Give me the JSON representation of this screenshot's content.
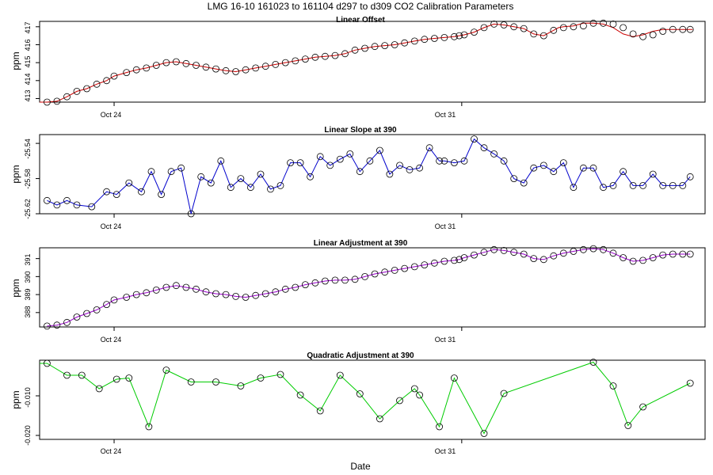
{
  "title": "LMG   16-10    161023 to 161104    d297 to d309   CO2 Calibration Parameters",
  "xlabel": "Date",
  "x_ticks": [
    {
      "day": 24,
      "label": "Oct 24"
    },
    {
      "day": 31,
      "label": "Oct 31"
    }
  ],
  "xlim": [
    22.5,
    35.9
  ],
  "colors": {
    "offset": "#cc0000",
    "slope": "#0000cc",
    "adjustment": "#9900cc",
    "quadratic": "#00cc00",
    "points": "#000000"
  },
  "chart_data": [
    {
      "type": "line",
      "title": "Linear Offset",
      "ylabel": "ppm",
      "ylim": [
        412.8,
        417.3
      ],
      "yticks": [
        "413",
        "414",
        "415",
        "416",
        "417"
      ],
      "line_x": [
        22.5,
        22.65,
        22.85,
        23.05,
        23.25,
        23.45,
        23.65,
        23.85,
        24.0,
        24.25,
        24.45,
        24.65,
        24.85,
        25.05,
        25.25,
        25.45,
        25.65,
        25.85,
        26.05,
        26.25,
        26.45,
        26.65,
        26.85,
        27.05,
        27.25,
        27.45,
        27.65,
        27.85,
        28.05,
        28.25,
        28.45,
        28.65,
        28.85,
        29.05,
        29.25,
        29.45,
        29.65,
        29.85,
        30.05,
        30.25,
        30.45,
        30.65,
        30.85,
        30.95,
        31.05,
        31.25,
        31.45,
        31.65,
        31.85,
        32.05,
        32.25,
        32.45,
        32.65,
        32.85,
        32.95,
        33.05,
        33.25,
        33.45,
        33.65,
        33.85,
        34.05,
        34.25,
        34.45,
        34.65,
        34.85,
        35.05,
        35.25,
        35.45,
        35.65
      ],
      "line_y": [
        412.8,
        412.8,
        412.85,
        413.1,
        413.4,
        413.55,
        413.8,
        414.0,
        414.25,
        414.45,
        414.6,
        414.7,
        414.85,
        415.0,
        415.05,
        414.95,
        414.85,
        414.75,
        414.65,
        414.55,
        414.5,
        414.6,
        414.7,
        414.8,
        414.9,
        415.0,
        415.1,
        415.2,
        415.3,
        415.35,
        415.4,
        415.5,
        415.7,
        415.8,
        415.9,
        415.95,
        416.0,
        416.1,
        416.2,
        416.3,
        416.35,
        416.4,
        416.45,
        416.5,
        416.55,
        416.7,
        416.95,
        417.15,
        417.1,
        417.0,
        416.9,
        416.6,
        416.5,
        416.8,
        416.95,
        417.0,
        417.05,
        417.2,
        417.2,
        417.15,
        416.95,
        416.6,
        416.45,
        416.55,
        416.75,
        416.85,
        416.85,
        416.85,
        416.85
      ],
      "points_x": [
        22.65,
        22.85,
        23.05,
        23.25,
        23.45,
        23.65,
        23.85,
        24.0,
        24.25,
        24.45,
        24.65,
        24.85,
        25.05,
        25.25,
        25.45,
        25.65,
        25.85,
        26.05,
        26.25,
        26.45,
        26.65,
        26.85,
        27.05,
        27.25,
        27.45,
        27.65,
        27.85,
        28.05,
        28.25,
        28.45,
        28.65,
        28.85,
        29.05,
        29.25,
        29.45,
        29.65,
        29.85,
        30.05,
        30.25,
        30.45,
        30.65,
        30.85,
        30.95,
        31.05,
        31.25,
        31.45,
        31.65,
        31.85,
        32.05,
        32.25,
        32.45,
        32.65,
        32.85,
        33.05,
        33.25,
        33.45,
        33.65,
        33.85,
        34.05,
        34.25,
        34.45,
        34.65,
        34.85,
        35.05,
        35.25,
        35.45,
        35.6
      ],
      "points_y": [
        412.8,
        412.85,
        413.1,
        413.4,
        413.55,
        413.8,
        414.0,
        414.25,
        414.45,
        414.6,
        414.7,
        414.85,
        415.0,
        415.05,
        414.95,
        414.85,
        414.75,
        414.65,
        414.55,
        414.5,
        414.6,
        414.7,
        414.8,
        414.9,
        415.0,
        415.1,
        415.2,
        415.3,
        415.35,
        415.4,
        415.5,
        415.7,
        415.8,
        415.9,
        415.95,
        416.0,
        416.1,
        416.2,
        416.3,
        416.35,
        416.4,
        416.45,
        416.5,
        416.55,
        416.7,
        416.95,
        417.15,
        417.1,
        417.0,
        416.9,
        416.6,
        416.5,
        416.8,
        416.95,
        417.0,
        417.05,
        417.2,
        417.2,
        417.15,
        416.95,
        416.6,
        416.45,
        416.55,
        416.75,
        416.85,
        416.85,
        416.85
      ]
    },
    {
      "type": "line",
      "title": "Linear Slope at 390",
      "ylabel": "ppm",
      "ylim": [
        -25.62,
        -25.53
      ],
      "yticks": [
        "-25.62",
        "-25.58",
        "-25.54"
      ],
      "points_x": [
        22.65,
        22.85,
        23.05,
        23.25,
        23.55,
        23.85,
        24.05,
        24.3,
        24.55,
        24.75,
        24.95,
        25.15,
        25.35,
        25.55,
        25.75,
        25.95,
        26.15,
        26.35,
        26.55,
        26.75,
        26.95,
        27.15,
        27.35,
        27.55,
        27.75,
        27.95,
        28.15,
        28.35,
        28.55,
        28.75,
        28.95,
        29.15,
        29.35,
        29.55,
        29.75,
        29.95,
        30.15,
        30.35,
        30.55,
        30.65,
        30.85,
        31.05,
        31.25,
        31.45,
        31.65,
        31.85,
        32.05,
        32.25,
        32.45,
        32.65,
        32.85,
        33.05,
        33.25,
        33.45,
        33.65,
        33.85,
        34.05,
        34.25,
        34.45,
        34.65,
        34.85,
        35.05,
        35.25,
        35.45,
        35.6
      ],
      "points_y": [
        -25.605,
        -25.61,
        -25.605,
        -25.61,
        -25.612,
        -25.595,
        -25.598,
        -25.585,
        -25.595,
        -25.572,
        -25.598,
        -25.572,
        -25.568,
        -25.62,
        -25.578,
        -25.585,
        -25.56,
        -25.59,
        -25.58,
        -25.59,
        -25.575,
        -25.592,
        -25.588,
        -25.562,
        -25.562,
        -25.578,
        -25.555,
        -25.565,
        -25.558,
        -25.552,
        -25.572,
        -25.56,
        -25.548,
        -25.575,
        -25.565,
        -25.57,
        -25.568,
        -25.545,
        -25.56,
        -25.56,
        -25.562,
        -25.56,
        -25.535,
        -25.545,
        -25.552,
        -25.56,
        -25.58,
        -25.585,
        -25.568,
        -25.565,
        -25.572,
        -25.562,
        -25.59,
        -25.568,
        -25.568,
        -25.59,
        -25.588,
        -25.572,
        -25.588,
        -25.588,
        -25.575,
        -25.588,
        -25.588,
        -25.588,
        -25.578
      ]
    },
    {
      "type": "line",
      "title": "Linear Adjustment at 390",
      "ylabel": "ppm",
      "ylim": [
        387.2,
        391.6
      ],
      "yticks": [
        "388",
        "389",
        "390",
        "391"
      ],
      "points_x": [
        22.65,
        22.85,
        23.05,
        23.25,
        23.45,
        23.65,
        23.85,
        24.0,
        24.25,
        24.45,
        24.65,
        24.85,
        25.05,
        25.25,
        25.45,
        25.65,
        25.85,
        26.05,
        26.25,
        26.45,
        26.65,
        26.85,
        27.05,
        27.25,
        27.45,
        27.65,
        27.85,
        28.05,
        28.25,
        28.45,
        28.65,
        28.85,
        29.05,
        29.25,
        29.45,
        29.65,
        29.85,
        30.05,
        30.25,
        30.45,
        30.65,
        30.85,
        30.95,
        31.05,
        31.25,
        31.45,
        31.65,
        31.85,
        32.05,
        32.25,
        32.45,
        32.65,
        32.85,
        33.05,
        33.25,
        33.45,
        33.65,
        33.85,
        34.05,
        34.25,
        34.45,
        34.65,
        34.85,
        35.05,
        35.25,
        35.45,
        35.6
      ],
      "points_y": [
        387.25,
        387.3,
        387.45,
        387.75,
        387.95,
        388.15,
        388.45,
        388.7,
        388.85,
        389.0,
        389.1,
        389.25,
        389.4,
        389.5,
        389.4,
        389.3,
        389.15,
        389.05,
        389.0,
        388.9,
        388.85,
        388.95,
        389.05,
        389.15,
        389.3,
        389.4,
        389.55,
        389.65,
        389.75,
        389.8,
        389.8,
        389.85,
        390.0,
        390.15,
        390.25,
        390.35,
        390.45,
        390.55,
        390.65,
        390.75,
        390.85,
        390.9,
        390.95,
        391.05,
        391.2,
        391.35,
        391.5,
        391.45,
        391.35,
        391.25,
        391.0,
        390.95,
        391.15,
        391.3,
        391.4,
        391.5,
        391.55,
        391.5,
        391.3,
        391.05,
        390.85,
        390.9,
        391.05,
        391.2,
        391.25,
        391.25,
        391.25
      ]
    },
    {
      "type": "line",
      "title": "Quadratic Adjustment at 390",
      "ylabel": "ppm",
      "ylim": [
        -0.021,
        -0.001
      ],
      "yticks": [
        "-0.020",
        "-0.010"
      ],
      "line_x": [
        22.5,
        22.65,
        23.05,
        23.35,
        23.7,
        24.05,
        24.3,
        24.7,
        25.05,
        25.55,
        26.05,
        26.55,
        26.95,
        27.35,
        27.75,
        28.15,
        28.55,
        28.95,
        29.35,
        29.75,
        30.05,
        30.15,
        30.55,
        30.85,
        31.45,
        31.85,
        33.65,
        34.05,
        34.35,
        34.65,
        35.6
      ],
      "line_y": [
        -0.0018,
        -0.0018,
        -0.0048,
        -0.0048,
        -0.0082,
        -0.0058,
        -0.0055,
        -0.0178,
        -0.0035,
        -0.0065,
        -0.0065,
        -0.0075,
        -0.0055,
        -0.0046,
        -0.0098,
        -0.0138,
        -0.0048,
        -0.0095,
        -0.0158,
        -0.0112,
        -0.0082,
        -0.0098,
        -0.0178,
        -0.0055,
        -0.0195,
        -0.0094,
        -0.0015,
        -0.0075,
        -0.0175,
        -0.0128,
        -0.0068
      ],
      "points_x": [
        22.65,
        23.05,
        23.35,
        23.7,
        24.05,
        24.3,
        24.7,
        25.05,
        25.55,
        26.05,
        26.55,
        26.95,
        27.35,
        27.75,
        28.15,
        28.55,
        28.95,
        29.35,
        29.75,
        30.05,
        30.15,
        30.55,
        30.85,
        31.45,
        31.85,
        33.65,
        34.05,
        34.35,
        34.65,
        35.6
      ],
      "points_y": [
        -0.0018,
        -0.0048,
        -0.0048,
        -0.0082,
        -0.0058,
        -0.0055,
        -0.0178,
        -0.0035,
        -0.0065,
        -0.0065,
        -0.0075,
        -0.0055,
        -0.0046,
        -0.0098,
        -0.0138,
        -0.0048,
        -0.0095,
        -0.0158,
        -0.0112,
        -0.0082,
        -0.0098,
        -0.0178,
        -0.0055,
        -0.0195,
        -0.0094,
        -0.0015,
        -0.0075,
        -0.0175,
        -0.0128,
        -0.0068
      ]
    }
  ]
}
